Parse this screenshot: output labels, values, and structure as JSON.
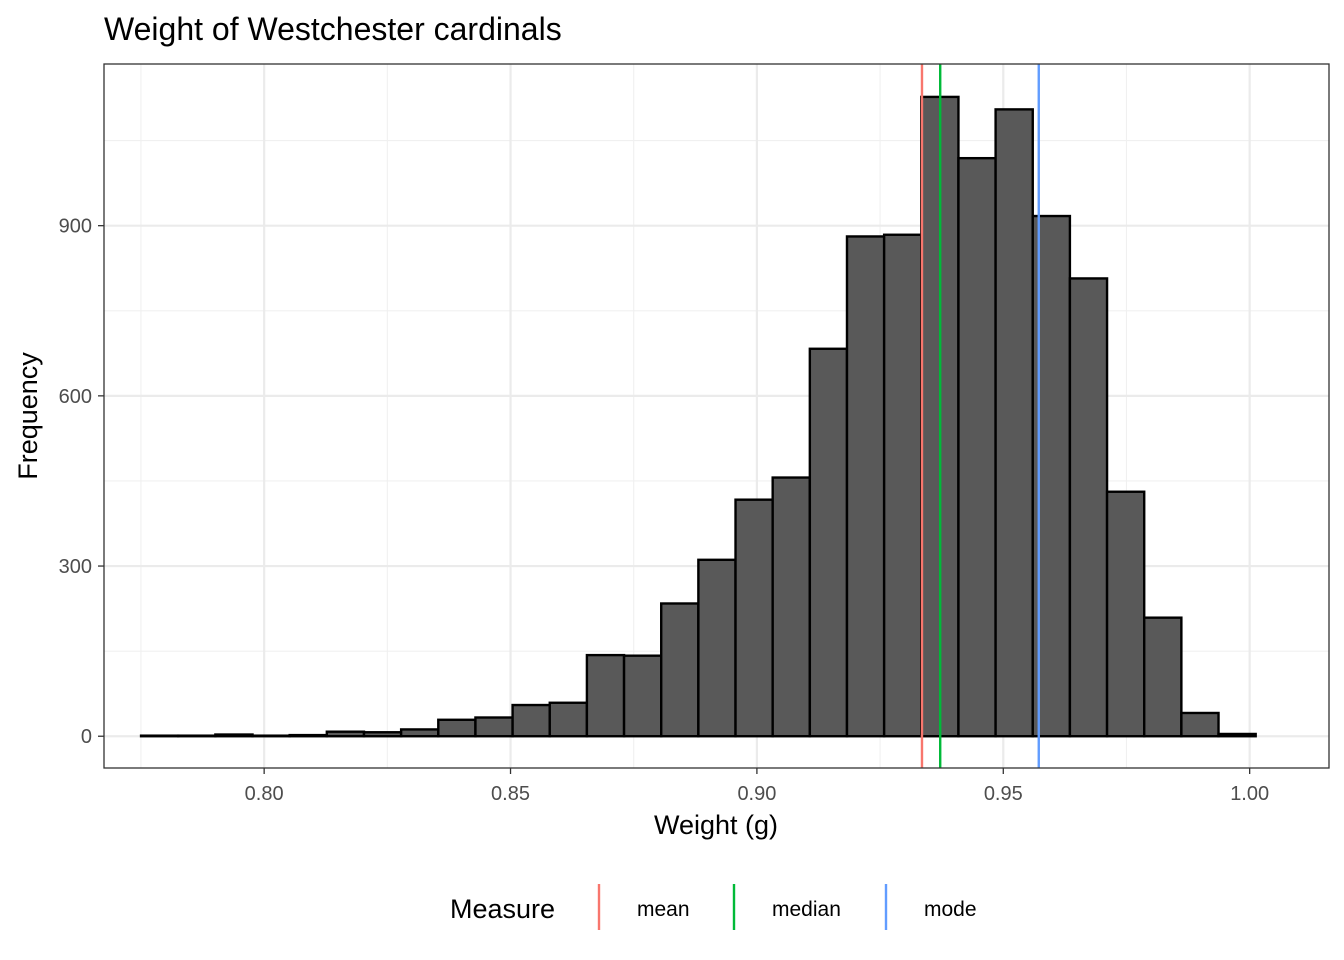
{
  "chart_data": {
    "type": "bar",
    "subtype": "histogram",
    "title": "Weight of Westchester cardinals",
    "xlabel": "Weight (g)",
    "ylabel": "Frequency",
    "xlim": [
      0.7675,
      1.0161
    ],
    "ylim": [
      -56,
      1185
    ],
    "grid": true,
    "legend_position": "bottom",
    "bin_width": 0.00754,
    "bin_start": 0.77502,
    "x_ticks": [
      0.8,
      0.85,
      0.9,
      0.95,
      1.0
    ],
    "x_tick_labels": [
      "0.80",
      "0.85",
      "0.90",
      "0.95",
      "1.00"
    ],
    "y_ticks": [
      0,
      300,
      600,
      900
    ],
    "y_tick_labels": [
      "0",
      "300",
      "600",
      "900"
    ],
    "bar_fill": "#595959",
    "bar_stroke": "#000000",
    "values": [
      1,
      1,
      3,
      1,
      2,
      8,
      7,
      12,
      29,
      33,
      55,
      59,
      143,
      142,
      234,
      311,
      417,
      456,
      683,
      881,
      884,
      1127,
      1019,
      1105,
      917,
      807,
      431,
      209,
      41,
      4
    ],
    "vlines": [
      {
        "name": "mean",
        "x": 0.9335,
        "color": "#F8766D"
      },
      {
        "name": "median",
        "x": 0.9372,
        "color": "#00BA38"
      },
      {
        "name": "mode",
        "x": 0.9572,
        "color": "#619CFF"
      }
    ],
    "legend_title": "Measure"
  }
}
